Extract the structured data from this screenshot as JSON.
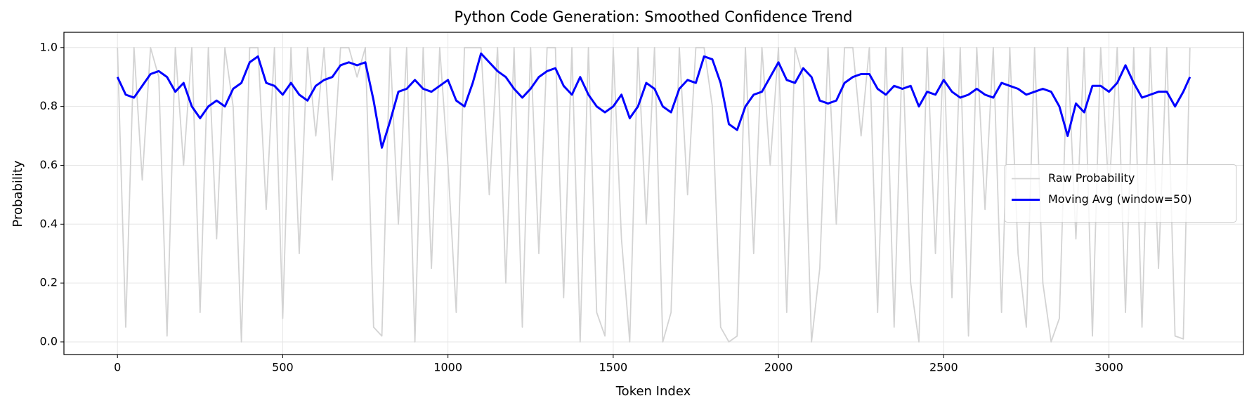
{
  "chart_data": {
    "type": "line",
    "title": "Python Code Generation: Smoothed Confidence Trend",
    "x_label": "Token Index",
    "y_label": "Probability",
    "x": [
      0,
      25,
      50,
      75,
      100,
      125,
      150,
      175,
      200,
      225,
      250,
      275,
      300,
      325,
      350,
      375,
      400,
      425,
      450,
      475,
      500,
      525,
      550,
      575,
      600,
      625,
      650,
      675,
      700,
      725,
      750,
      775,
      800,
      825,
      850,
      875,
      900,
      925,
      950,
      975,
      1000,
      1025,
      1050,
      1075,
      1100,
      1125,
      1150,
      1175,
      1200,
      1225,
      1250,
      1275,
      1300,
      1325,
      1350,
      1375,
      1400,
      1425,
      1450,
      1475,
      1500,
      1525,
      1550,
      1575,
      1600,
      1625,
      1650,
      1675,
      1700,
      1725,
      1750,
      1775,
      1800,
      1825,
      1850,
      1875,
      1900,
      1925,
      1950,
      1975,
      2000,
      2025,
      2050,
      2075,
      2100,
      2125,
      2150,
      2175,
      2200,
      2225,
      2250,
      2275,
      2300,
      2325,
      2350,
      2375,
      2400,
      2425,
      2450,
      2475,
      2500,
      2525,
      2550,
      2575,
      2600,
      2625,
      2650,
      2675,
      2700,
      2725,
      2750,
      2775,
      2800,
      2825,
      2850,
      2875,
      2900,
      2925,
      2950,
      2975,
      3000,
      3025,
      3050,
      3075,
      3100,
      3125,
      3150,
      3175,
      3200,
      3225,
      3245
    ],
    "series": [
      {
        "name": "Raw Probability",
        "color": "#d3d3d3",
        "width": 1.8,
        "values": [
          1,
          0.05,
          1,
          0.55,
          1,
          0.9,
          0.02,
          1,
          0.6,
          1,
          0.1,
          1,
          0.35,
          1,
          0.8,
          0.0,
          1,
          1,
          0.45,
          1,
          0.08,
          1,
          0.3,
          1,
          0.7,
          1,
          0.55,
          1,
          1,
          0.9,
          1,
          0.05,
          0.02,
          1,
          0.4,
          1,
          0.0,
          1,
          0.25,
          1,
          0.6,
          0.1,
          1,
          1,
          1,
          0.5,
          1,
          0.2,
          1,
          0.05,
          1,
          0.3,
          1,
          1,
          0.15,
          1,
          0.0,
          1,
          0.1,
          0.02,
          1,
          0.35,
          0.0,
          1,
          0.4,
          1,
          0.0,
          0.1,
          1,
          0.5,
          1,
          1,
          0.8,
          0.05,
          0.0,
          0.02,
          1,
          0.3,
          1,
          0.6,
          1,
          0.1,
          1,
          0.9,
          0.0,
          0.25,
          1,
          0.4,
          1,
          1,
          0.7,
          1,
          0.1,
          1,
          0.05,
          1,
          0.2,
          0.0,
          1,
          0.3,
          1,
          0.15,
          1,
          0.02,
          1,
          0.45,
          1,
          0.1,
          1,
          0.3,
          0.05,
          1,
          0.2,
          0.0,
          0.08,
          1,
          0.35,
          1,
          0.02,
          1,
          0.5,
          1,
          0.1,
          1,
          0.05,
          1,
          0.25,
          1,
          0.02,
          0.01,
          1
        ]
      },
      {
        "name": "Moving Avg (window=50)",
        "color": "#0000ff",
        "width": 3,
        "values": [
          0.9,
          0.84,
          0.83,
          0.87,
          0.91,
          0.92,
          0.9,
          0.85,
          0.88,
          0.8,
          0.76,
          0.8,
          0.82,
          0.8,
          0.86,
          0.88,
          0.95,
          0.97,
          0.88,
          0.87,
          0.84,
          0.88,
          0.84,
          0.82,
          0.87,
          0.89,
          0.9,
          0.94,
          0.95,
          0.94,
          0.95,
          0.82,
          0.66,
          0.75,
          0.85,
          0.86,
          0.89,
          0.86,
          0.85,
          0.87,
          0.89,
          0.82,
          0.8,
          0.88,
          0.98,
          0.95,
          0.92,
          0.9,
          0.86,
          0.83,
          0.86,
          0.9,
          0.92,
          0.93,
          0.87,
          0.84,
          0.9,
          0.84,
          0.8,
          0.78,
          0.8,
          0.84,
          0.76,
          0.8,
          0.88,
          0.86,
          0.8,
          0.78,
          0.86,
          0.89,
          0.88,
          0.97,
          0.96,
          0.88,
          0.74,
          0.72,
          0.8,
          0.84,
          0.85,
          0.9,
          0.95,
          0.89,
          0.88,
          0.93,
          0.9,
          0.82,
          0.81,
          0.82,
          0.88,
          0.9,
          0.91,
          0.91,
          0.86,
          0.84,
          0.87,
          0.86,
          0.87,
          0.8,
          0.85,
          0.84,
          0.89,
          0.85,
          0.83,
          0.84,
          0.86,
          0.84,
          0.83,
          0.88,
          0.87,
          0.86,
          0.84,
          0.85,
          0.86,
          0.85,
          0.8,
          0.7,
          0.81,
          0.78,
          0.87,
          0.87,
          0.85,
          0.88,
          0.94,
          0.88,
          0.83,
          0.84,
          0.85,
          0.85,
          0.8,
          0.85,
          0.9
        ]
      }
    ],
    "xlim": [
      -162,
      3407
    ],
    "ylim": [
      -0.043,
      1.052
    ],
    "xticks": [
      0,
      500,
      1000,
      1500,
      2000,
      2500,
      3000
    ],
    "yticks": [
      {
        "value": 0,
        "label": "0.0"
      },
      {
        "value": 0.2,
        "label": "0.2"
      },
      {
        "value": 0.4,
        "label": "0.4"
      },
      {
        "value": 0.6,
        "label": "0.6"
      },
      {
        "value": 0.8,
        "label": "0.8"
      },
      {
        "value": 1,
        "label": "1.0"
      }
    ],
    "grid": true,
    "legend": "right"
  }
}
